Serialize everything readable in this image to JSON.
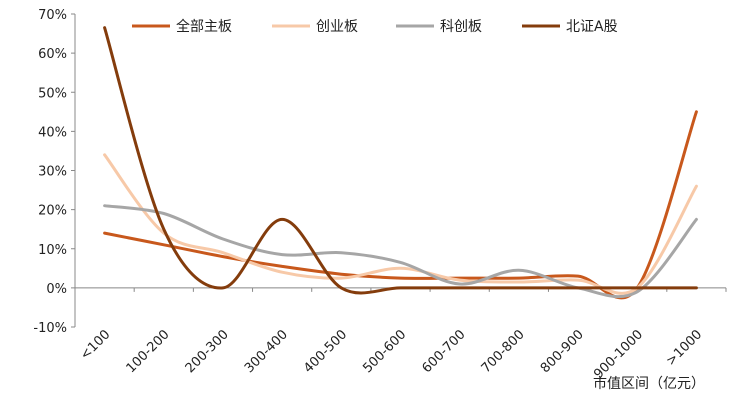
{
  "chart_data": {
    "type": "line",
    "title": "",
    "xlabel": "市值区间（亿元）",
    "ylabel": "",
    "ylim": [
      -10,
      70
    ],
    "y_ticks": [
      -10,
      0,
      10,
      20,
      30,
      40,
      50,
      60,
      70
    ],
    "y_tick_suffix": "%",
    "grid": false,
    "smooth": true,
    "legend_position": "top",
    "categories": [
      "<100",
      "100-200",
      "200-300",
      "300-400",
      "400-500",
      "500-600",
      "600-700",
      "700-800",
      "800-900",
      "900-1000",
      ">1000"
    ],
    "series": [
      {
        "name": "全部主板",
        "color": "#C8581C",
        "values": [
          14,
          11,
          8,
          5.5,
          3.5,
          2.5,
          2.5,
          2.5,
          3,
          0,
          45
        ]
      },
      {
        "name": "创业板",
        "color": "#F7C9A8",
        "values": [
          34,
          14,
          9,
          4,
          2.5,
          5,
          2,
          1.5,
          2,
          0,
          26
        ]
      },
      {
        "name": "科创板",
        "color": "#A6A6A6",
        "values": [
          21,
          19,
          12.5,
          8.5,
          9,
          6.5,
          1,
          4.5,
          0,
          -1,
          17.5
        ]
      },
      {
        "name": "北证A股",
        "color": "#843C0C",
        "values": [
          66.5,
          15,
          0,
          17.5,
          0,
          0,
          0,
          0,
          0,
          0,
          0
        ]
      }
    ]
  }
}
